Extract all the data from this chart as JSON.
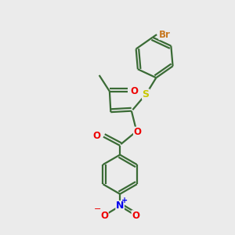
{
  "bg_color": "#ebebeb",
  "bond_color": "#3a6b35",
  "bond_width": 1.6,
  "atom_colors": {
    "Br": "#c87820",
    "S": "#c8c800",
    "O": "#ee0000",
    "N": "#0000ee",
    "C": "#000000"
  },
  "font_size": 8.5,
  "figsize": [
    3.0,
    3.0
  ],
  "dpi": 100,
  "xlim": [
    0,
    10
  ],
  "ylim": [
    0,
    10
  ]
}
